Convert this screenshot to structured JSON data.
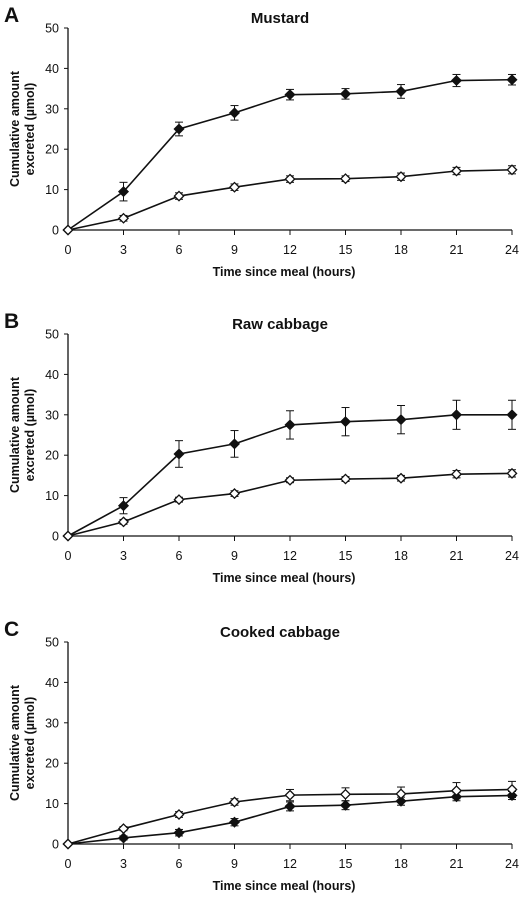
{
  "chart_data": [
    {
      "panel": "A",
      "type": "line",
      "title": "Mustard",
      "xlabel": "Time since meal (hours)",
      "ylabel": [
        "Cumulative amount",
        "excreted (µmol)"
      ],
      "x": [
        0,
        3,
        6,
        9,
        12,
        15,
        18,
        21,
        24
      ],
      "xlim": [
        0,
        24
      ],
      "ylim": [
        0,
        50
      ],
      "xticks": [
        "0",
        "3",
        "6",
        "9",
        "12",
        "15",
        "18",
        "21",
        "24"
      ],
      "yticks": [
        "0",
        "10",
        "20",
        "30",
        "40",
        "50"
      ],
      "series": [
        {
          "marker": "filled-diamond",
          "values": [
            0,
            9.5,
            25,
            29,
            33.5,
            33.7,
            34.3,
            37,
            37.2
          ],
          "errors": [
            0,
            2.3,
            1.7,
            1.8,
            1.3,
            1.3,
            1.7,
            1.5,
            1.3
          ]
        },
        {
          "marker": "open-diamond",
          "values": [
            0,
            2.9,
            8.4,
            10.6,
            12.6,
            12.7,
            13.2,
            14.6,
            14.9
          ],
          "errors": [
            0,
            0.7,
            0.8,
            0.8,
            0.8,
            0.7,
            0.9,
            0.9,
            1.0
          ]
        }
      ]
    },
    {
      "panel": "B",
      "type": "line",
      "title": "Raw cabbage",
      "xlabel": "Time since meal (hours)",
      "ylabel": [
        "Cumulative amount",
        "excreted (µmol)"
      ],
      "x": [
        0,
        3,
        6,
        9,
        12,
        15,
        18,
        21,
        24
      ],
      "xlim": [
        0,
        24
      ],
      "ylim": [
        0,
        50
      ],
      "xticks": [
        "0",
        "3",
        "6",
        "9",
        "12",
        "15",
        "18",
        "21",
        "24"
      ],
      "yticks": [
        "0",
        "10",
        "20",
        "30",
        "40",
        "50"
      ],
      "series": [
        {
          "marker": "filled-diamond",
          "values": [
            0,
            7.5,
            20.3,
            22.8,
            27.5,
            28.3,
            28.8,
            30,
            30
          ],
          "errors": [
            0,
            2,
            3.3,
            3.3,
            3.5,
            3.5,
            3.5,
            3.6,
            3.6
          ]
        },
        {
          "marker": "open-diamond",
          "values": [
            0,
            3.5,
            9,
            10.5,
            13.8,
            14.1,
            14.3,
            15.3,
            15.5
          ],
          "errors": [
            0,
            0.6,
            0.6,
            0.7,
            0.6,
            0.6,
            0.7,
            0.9,
            0.9
          ]
        }
      ]
    },
    {
      "panel": "C",
      "type": "line",
      "title": "Cooked cabbage",
      "xlabel": "Time since meal (hours)",
      "ylabel": [
        "Cumulative amount",
        "excreted (µmol)"
      ],
      "x": [
        0,
        3,
        6,
        9,
        12,
        15,
        18,
        21,
        24
      ],
      "xlim": [
        0,
        24
      ],
      "ylim": [
        0,
        50
      ],
      "xticks": [
        "0",
        "3",
        "6",
        "9",
        "12",
        "15",
        "18",
        "21",
        "24"
      ],
      "yticks": [
        "0",
        "10",
        "20",
        "30",
        "40",
        "50"
      ],
      "series": [
        {
          "marker": "filled-diamond",
          "values": [
            0,
            1.5,
            2.8,
            5.4,
            9.3,
            9.6,
            10.6,
            11.7,
            12
          ],
          "errors": [
            0,
            0.5,
            0.8,
            0.9,
            1.1,
            1.1,
            1,
            1,
            1
          ]
        },
        {
          "marker": "open-diamond",
          "values": [
            0,
            3.8,
            7.3,
            10.4,
            12.1,
            12.3,
            12.4,
            13.2,
            13.5
          ],
          "errors": [
            0,
            0.5,
            0.7,
            0.8,
            1.4,
            1.6,
            1.7,
            2,
            2
          ]
        }
      ]
    }
  ]
}
